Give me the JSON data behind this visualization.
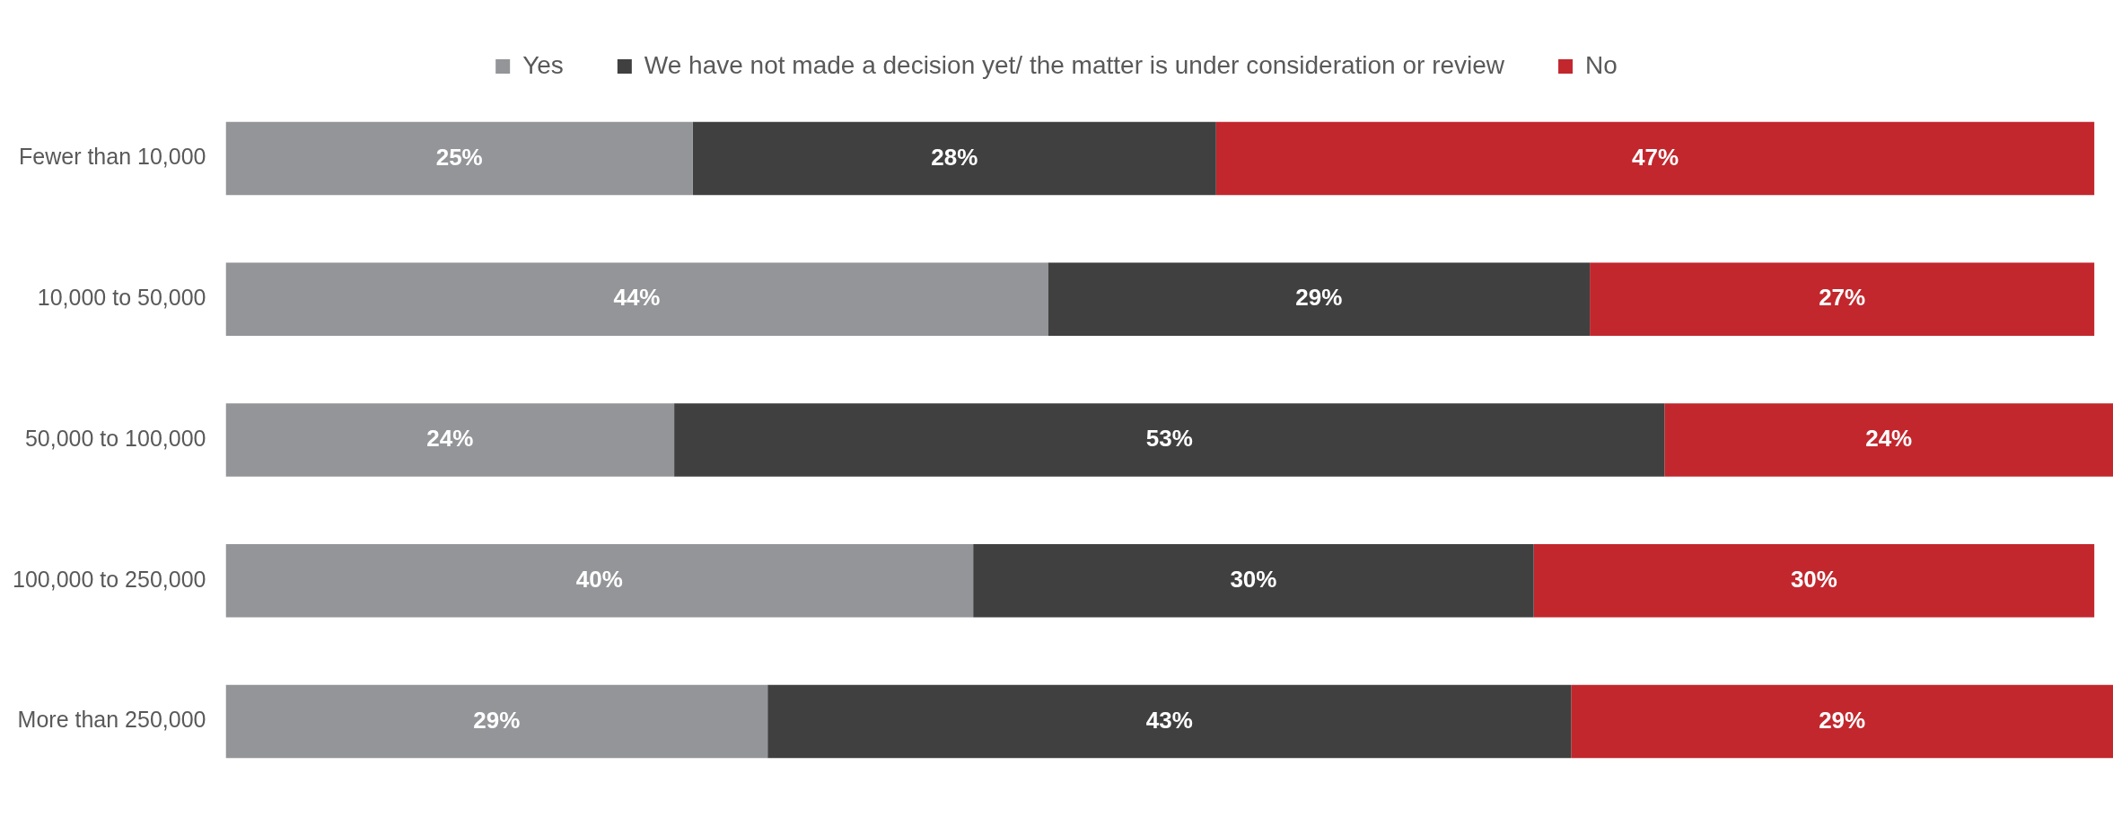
{
  "chart_data": {
    "type": "bar",
    "orientation": "horizontal",
    "stacked": true,
    "legend": "top",
    "tick_labels": "y",
    "categories": [
      "Fewer than 10,000",
      "10,000 to 50,000",
      "50,000 to 100,000",
      "100,000 to 250,000",
      "More than 250,000"
    ],
    "series": [
      {
        "name": "Yes",
        "color": "#939598",
        "values": [
          25,
          44,
          24,
          40,
          29
        ],
        "value_labels": [
          "25%",
          "44%",
          "24%",
          "40%",
          "29%"
        ]
      },
      {
        "name": "We have not made a decision yet/ the matter is under consideration or review",
        "color": "#404040",
        "values": [
          28,
          29,
          53,
          30,
          43
        ],
        "value_labels": [
          "28%",
          "29%",
          "53%",
          "30%",
          "43%"
        ]
      },
      {
        "name": "No",
        "color": "#c1272d",
        "values": [
          47,
          27,
          24,
          30,
          29
        ],
        "value_labels": [
          "47%",
          "27%",
          "24%",
          "30%",
          "29%"
        ]
      }
    ]
  }
}
